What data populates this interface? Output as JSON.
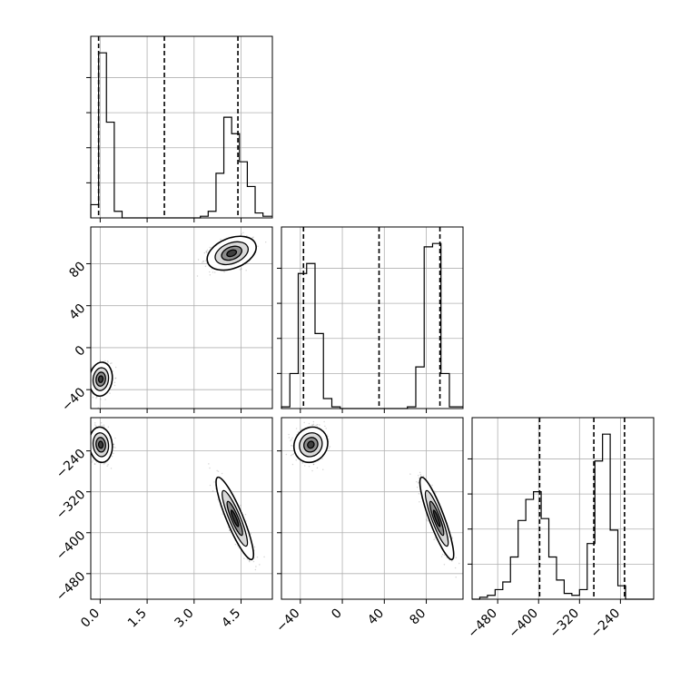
{
  "chart_data": {
    "type": "corner",
    "grid": true,
    "parameters": [
      {
        "ticks": [
          "0.0",
          "1.5",
          "3.0",
          "4.5"
        ],
        "tick_values": [
          0.0,
          1.5,
          3.0,
          4.5
        ],
        "range": [
          -0.3,
          5.5
        ],
        "quantiles": [
          -0.05,
          2.05,
          4.4
        ]
      },
      {
        "ticks": [
          "−40",
          "0",
          "40",
          "80"
        ],
        "tick_values": [
          -40,
          0,
          40,
          80
        ],
        "range": [
          -58,
          115
        ],
        "quantiles": [
          -37,
          35,
          93
        ]
      },
      {
        "ticks": [
          "−480",
          "−400",
          "−320",
          "−240"
        ],
        "tick_values": [
          -480,
          -400,
          -320,
          -240
        ],
        "range": [
          -530,
          -175
        ],
        "quantiles": [
          -398,
          -292,
          -232
        ]
      }
    ],
    "histograms": [
      {
        "param_index": 0,
        "bin_edges": [
          -0.3,
          -0.05,
          0.2,
          0.45,
          0.7,
          0.95,
          1.2,
          1.45,
          1.7,
          1.95,
          2.2,
          2.45,
          2.7,
          2.95,
          3.2,
          3.45,
          3.7,
          3.95,
          4.2,
          4.45,
          4.7,
          4.95,
          5.2,
          5.5
        ],
        "counts": [
          0.08,
          1.0,
          0.58,
          0.04,
          0,
          0,
          0,
          0,
          0,
          0,
          0,
          0,
          0,
          0,
          0.01,
          0.04,
          0.27,
          0.61,
          0.51,
          0.34,
          0.19,
          0.03,
          0.01
        ]
      },
      {
        "param_index": 1,
        "bin_edges": [
          -58,
          -50,
          -42,
          -34,
          -26,
          -18,
          -10,
          -2,
          6,
          14,
          22,
          30,
          38,
          46,
          54,
          62,
          70,
          78,
          86,
          94,
          102,
          115
        ],
        "counts": [
          0.01,
          0.21,
          0.81,
          0.87,
          0.45,
          0.06,
          0.01,
          0,
          0,
          0,
          0,
          0,
          0,
          0,
          0,
          0.01,
          0.25,
          0.97,
          0.99,
          0.21,
          0.01
        ]
      },
      {
        "param_index": 2,
        "bin_edges": [
          -530,
          -515,
          -500,
          -485,
          -470,
          -455,
          -440,
          -425,
          -410,
          -395,
          -380,
          -365,
          -350,
          -335,
          -320,
          -305,
          -290,
          -275,
          -260,
          -245,
          -230,
          -215,
          -200,
          -185,
          -175
        ],
        "counts": [
          0.0,
          0.01,
          0.02,
          0.05,
          0.09,
          0.22,
          0.41,
          0.52,
          0.56,
          0.42,
          0.22,
          0.1,
          0.03,
          0.02,
          0.05,
          0.29,
          0.72,
          0.86,
          0.36,
          0.07,
          0.0,
          0.0,
          0.0,
          0.0
        ]
      }
    ],
    "panels_2d": [
      {
        "x_param": 0,
        "y_param": 1,
        "clusters": [
          {
            "center": [
              0.02,
              -30
            ],
            "sd": [
              0.16,
              7
            ],
            "corr": 0.1
          },
          {
            "center": [
              4.2,
              90
            ],
            "sd": [
              0.34,
              7
            ],
            "corr": 0.35
          }
        ]
      },
      {
        "x_param": 0,
        "y_param": 2,
        "clusters": [
          {
            "center": [
              0.02,
              -228
            ],
            "sd": [
              0.16,
              15
            ],
            "corr": -0.1
          },
          {
            "center": [
              4.3,
              -372
            ],
            "sd": [
              0.26,
              35
            ],
            "corr": -0.88
          }
        ]
      },
      {
        "x_param": 1,
        "y_param": 2,
        "clusters": [
          {
            "center": [
              -30,
              -228
            ],
            "sd": [
              7,
              15
            ],
            "corr": 0.1
          },
          {
            "center": [
              90,
              -372
            ],
            "sd": [
              7,
              35
            ],
            "corr": -0.88
          }
        ]
      }
    ]
  }
}
